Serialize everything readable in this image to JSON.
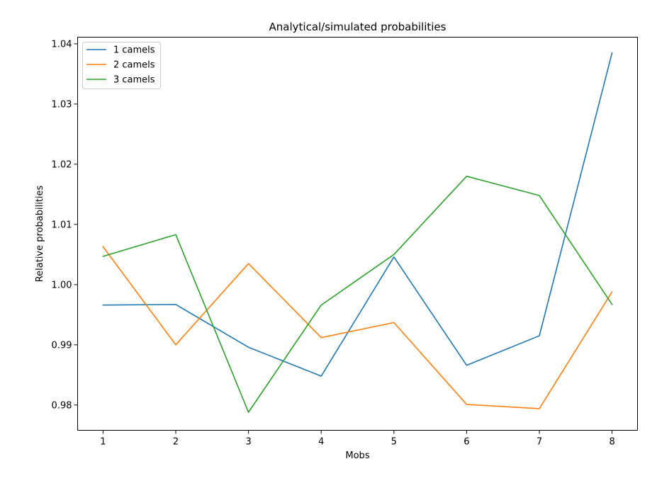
{
  "chart_data": {
    "type": "line",
    "title": "Analytical/simulated probabilities",
    "xlabel": "Mobs",
    "ylabel": "Relative probabilities",
    "x": [
      1,
      2,
      3,
      4,
      5,
      6,
      7,
      8
    ],
    "xticks": [
      1,
      2,
      3,
      4,
      5,
      6,
      7,
      8
    ],
    "xlim": [
      0.65,
      8.35
    ],
    "yticks": [
      0.98,
      0.99,
      1.0,
      1.01,
      1.02,
      1.03,
      1.04
    ],
    "ytick_labels": [
      "0.98",
      "0.99",
      "1.00",
      "1.01",
      "1.02",
      "1.03",
      "1.04"
    ],
    "ylim": [
      0.9758,
      1.0411
    ],
    "grid": false,
    "legend_position": "upper-left",
    "series": [
      {
        "name": "1 camels",
        "color": "#1f77b4",
        "values": [
          0.9966,
          0.9967,
          0.9896,
          0.9848,
          1.0046,
          0.9866,
          0.9915,
          1.0385
        ]
      },
      {
        "name": "2 camels",
        "color": "#ff7f0e",
        "values": [
          1.0063,
          0.99,
          1.0035,
          0.9912,
          0.9937,
          0.9801,
          0.9794,
          0.9988
        ]
      },
      {
        "name": "3 camels",
        "color": "#2ca02c",
        "values": [
          1.0047,
          1.0083,
          0.9788,
          0.9966,
          1.005,
          1.018,
          1.0148,
          0.9967
        ]
      }
    ]
  }
}
